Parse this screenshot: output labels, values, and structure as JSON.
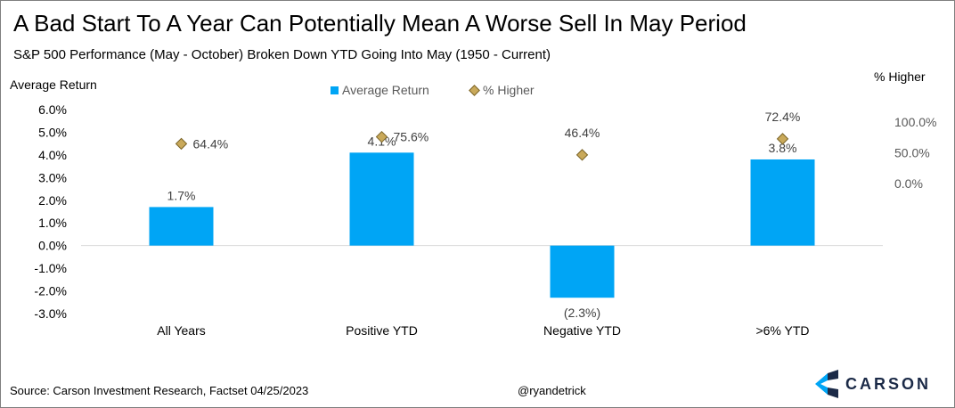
{
  "title": "A Bad Start To A Year Can Potentially Mean A Worse Sell In May Period",
  "subtitle": "S&P 500 Performance (May - October) Broken Down YTD Going Into May (1950 - Current)",
  "footer": {
    "source": "Source: Carson Investment Research, Factset 04/25/2023",
    "handle": "@ryandetrick",
    "logo_text": "CARSON"
  },
  "colors": {
    "bar": "#00a5f5",
    "diamond": "#c9a95a",
    "diamond_edge": "#7a6428",
    "axis": "#d9d9d9",
    "logo_dark": "#1b2a47",
    "logo_light": "#00a5f5"
  },
  "chart_data": {
    "type": "bar",
    "categories": [
      "All Years",
      "Positive YTD",
      "Negative YTD",
      ">6% YTD"
    ],
    "series": [
      {
        "name": "Average Return",
        "type": "bar",
        "axis": "left",
        "values": [
          1.7,
          4.1,
          -2.3,
          3.8
        ],
        "labels": [
          "1.7%",
          "4.1%",
          "(2.3%)",
          "3.8%"
        ]
      },
      {
        "name": "% Higher",
        "type": "scatter",
        "marker": "diamond",
        "axis": "right",
        "values": [
          64.4,
          75.6,
          46.4,
          72.4
        ],
        "labels": [
          "64.4%",
          "75.6%",
          "46.4%",
          "72.4%"
        ]
      }
    ],
    "ylabel": "Average Return",
    "ylabel_right": "% Higher",
    "ylim": [
      -3.0,
      6.0
    ],
    "ylim_right": [
      -100,
      120
    ],
    "yticks": [
      "6.0%",
      "5.0%",
      "4.0%",
      "3.0%",
      "2.0%",
      "1.0%",
      "0.0%",
      "-1.0%",
      "-2.0%",
      "-3.0%"
    ],
    "ytick_values": [
      6,
      5,
      4,
      3,
      2,
      1,
      0,
      -1,
      -2,
      -3
    ],
    "yticks_right": [
      "100.0%",
      "50.0%",
      "0.0%"
    ],
    "ytick_right_values": [
      100,
      50,
      0
    ],
    "legend": "top",
    "grid": false
  }
}
